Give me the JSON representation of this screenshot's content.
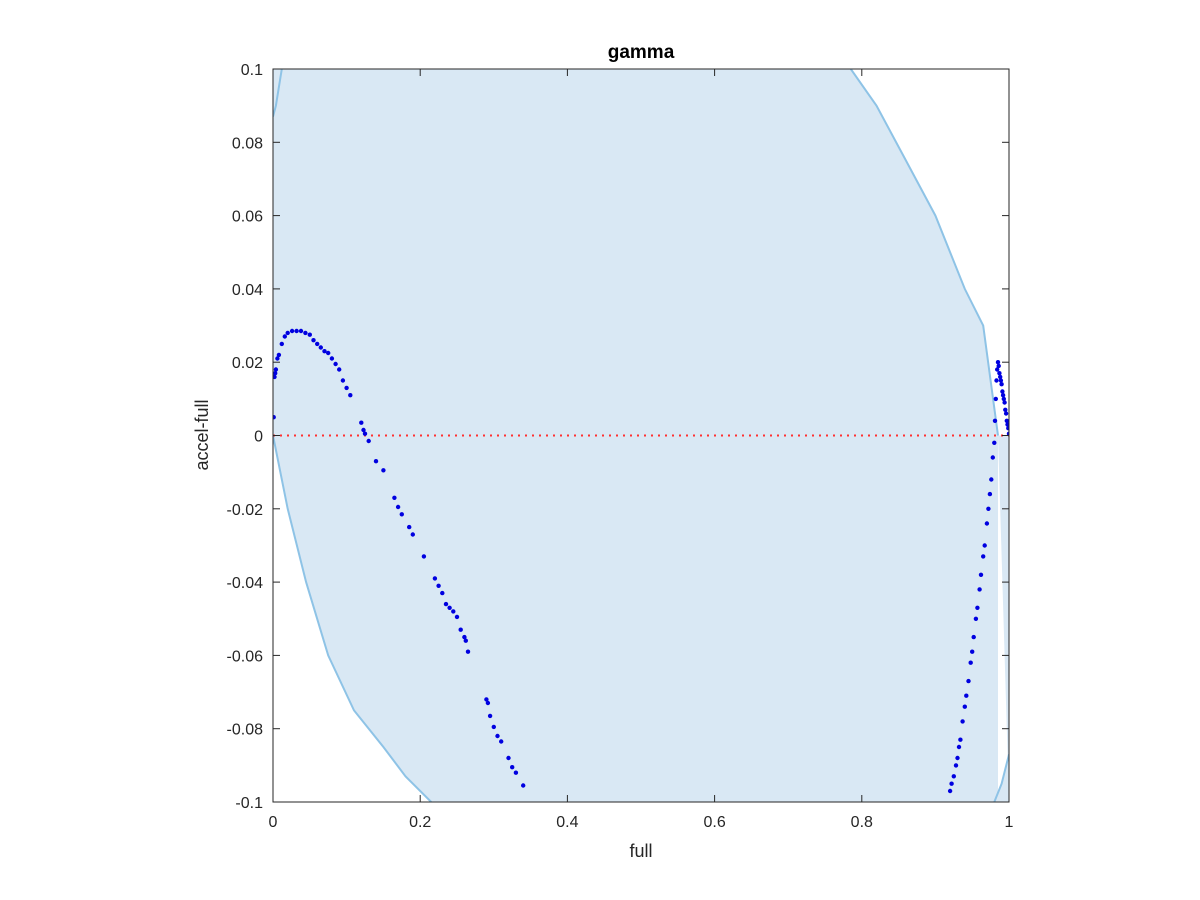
{
  "chart_data": {
    "type": "scatter",
    "title": "gamma",
    "xlabel": "full",
    "ylabel": "accel-full",
    "xlim": [
      0,
      1
    ],
    "ylim": [
      -0.1,
      0.1
    ],
    "xticks": [
      0,
      0.2,
      0.4,
      0.6,
      0.8,
      1
    ],
    "xtick_labels": [
      "0",
      "0.2",
      "0.4",
      "0.6",
      "0.8",
      "1"
    ],
    "yticks": [
      -0.1,
      -0.08,
      -0.06,
      -0.04,
      -0.02,
      0,
      0.02,
      0.04,
      0.06,
      0.08,
      0.1
    ],
    "ytick_labels": [
      "-0.1",
      "-0.08",
      "-0.06",
      "-0.04",
      "-0.02",
      "0",
      "0.02",
      "0.04",
      "0.06",
      "0.08",
      "0.1"
    ],
    "grid": false,
    "colors": {
      "region_fill": "#d9e8f4",
      "region_edge": "#8ec3e6",
      "points": "#0000e0",
      "zero_line": "#ff3030",
      "axes": "#262626"
    },
    "region": {
      "left_boundary": [
        [
          0,
          0.087
        ],
        [
          0.004,
          0.09
        ],
        [
          0.012,
          0.1
        ],
        [
          0,
          0
        ],
        [
          0.02,
          -0.02
        ],
        [
          0.045,
          -0.04
        ],
        [
          0.075,
          -0.06
        ],
        [
          0.11,
          -0.075
        ],
        [
          0.15,
          -0.085
        ],
        [
          0.18,
          -0.093
        ],
        [
          0.215,
          -0.1
        ]
      ],
      "right_boundary": [
        [
          0.785,
          0.1
        ],
        [
          0.82,
          0.09
        ],
        [
          0.86,
          0.075
        ],
        [
          0.9,
          0.06
        ],
        [
          0.94,
          0.04
        ],
        [
          0.965,
          0.03
        ],
        [
          0.985,
          0.0
        ],
        [
          0.98,
          -0.1
        ],
        [
          0.99,
          -0.095
        ],
        [
          1,
          -0.087
        ]
      ]
    },
    "zero_line": {
      "y": 0,
      "style": "dotted"
    },
    "series": [
      {
        "points": [
          [
            0.001,
            0.005
          ],
          [
            0.002,
            0.016
          ],
          [
            0.003,
            0.017
          ],
          [
            0.004,
            0.018
          ],
          [
            0.006,
            0.021
          ],
          [
            0.008,
            0.022
          ],
          [
            0.012,
            0.025
          ],
          [
            0.016,
            0.027
          ],
          [
            0.02,
            0.028
          ],
          [
            0.026,
            0.0285
          ],
          [
            0.032,
            0.0285
          ],
          [
            0.038,
            0.0285
          ],
          [
            0.044,
            0.028
          ],
          [
            0.05,
            0.0275
          ],
          [
            0.055,
            0.026
          ],
          [
            0.06,
            0.025
          ],
          [
            0.065,
            0.024
          ],
          [
            0.07,
            0.023
          ],
          [
            0.075,
            0.0225
          ],
          [
            0.08,
            0.021
          ],
          [
            0.085,
            0.0195
          ],
          [
            0.09,
            0.018
          ],
          [
            0.095,
            0.015
          ],
          [
            0.1,
            0.013
          ],
          [
            0.105,
            0.011
          ],
          [
            0.12,
            0.0035
          ],
          [
            0.123,
            0.0015
          ],
          [
            0.125,
            0.0005
          ],
          [
            0.13,
            -0.0015
          ],
          [
            0.14,
            -0.007
          ],
          [
            0.15,
            -0.0095
          ],
          [
            0.165,
            -0.017
          ],
          [
            0.17,
            -0.0195
          ],
          [
            0.175,
            -0.0215
          ],
          [
            0.185,
            -0.025
          ],
          [
            0.19,
            -0.027
          ],
          [
            0.205,
            -0.033
          ],
          [
            0.22,
            -0.039
          ],
          [
            0.225,
            -0.041
          ],
          [
            0.23,
            -0.043
          ],
          [
            0.235,
            -0.046
          ],
          [
            0.24,
            -0.047
          ],
          [
            0.245,
            -0.048
          ],
          [
            0.25,
            -0.0495
          ],
          [
            0.255,
            -0.053
          ],
          [
            0.26,
            -0.055
          ],
          [
            0.262,
            -0.056
          ],
          [
            0.265,
            -0.059
          ],
          [
            0.29,
            -0.072
          ],
          [
            0.292,
            -0.073
          ],
          [
            0.295,
            -0.0765
          ],
          [
            0.3,
            -0.0795
          ],
          [
            0.305,
            -0.082
          ],
          [
            0.31,
            -0.0835
          ],
          [
            0.32,
            -0.088
          ],
          [
            0.325,
            -0.0905
          ],
          [
            0.33,
            -0.092
          ],
          [
            0.34,
            -0.0955
          ],
          [
            0.92,
            -0.097
          ],
          [
            0.922,
            -0.095
          ],
          [
            0.925,
            -0.093
          ],
          [
            0.928,
            -0.09
          ],
          [
            0.93,
            -0.088
          ],
          [
            0.932,
            -0.085
          ],
          [
            0.934,
            -0.083
          ],
          [
            0.937,
            -0.078
          ],
          [
            0.94,
            -0.074
          ],
          [
            0.942,
            -0.071
          ],
          [
            0.945,
            -0.067
          ],
          [
            0.948,
            -0.062
          ],
          [
            0.95,
            -0.059
          ],
          [
            0.952,
            -0.055
          ],
          [
            0.955,
            -0.05
          ],
          [
            0.957,
            -0.047
          ],
          [
            0.96,
            -0.042
          ],
          [
            0.962,
            -0.038
          ],
          [
            0.965,
            -0.033
          ],
          [
            0.967,
            -0.03
          ],
          [
            0.97,
            -0.024
          ],
          [
            0.972,
            -0.02
          ],
          [
            0.974,
            -0.016
          ],
          [
            0.976,
            -0.012
          ],
          [
            0.978,
            -0.006
          ],
          [
            0.98,
            -0.002
          ],
          [
            0.981,
            0.004
          ],
          [
            0.982,
            0.01
          ],
          [
            0.983,
            0.015
          ],
          [
            0.984,
            0.018
          ],
          [
            0.985,
            0.02
          ],
          [
            0.986,
            0.019
          ],
          [
            0.987,
            0.017
          ],
          [
            0.988,
            0.016
          ],
          [
            0.989,
            0.015
          ],
          [
            0.99,
            0.014
          ],
          [
            0.991,
            0.012
          ],
          [
            0.992,
            0.011
          ],
          [
            0.993,
            0.01
          ],
          [
            0.994,
            0.009
          ],
          [
            0.995,
            0.007
          ],
          [
            0.996,
            0.006
          ],
          [
            0.997,
            0.004
          ],
          [
            0.998,
            0.003
          ],
          [
            0.999,
            0.002
          ],
          [
            1.0,
            0.0005
          ]
        ]
      }
    ]
  }
}
